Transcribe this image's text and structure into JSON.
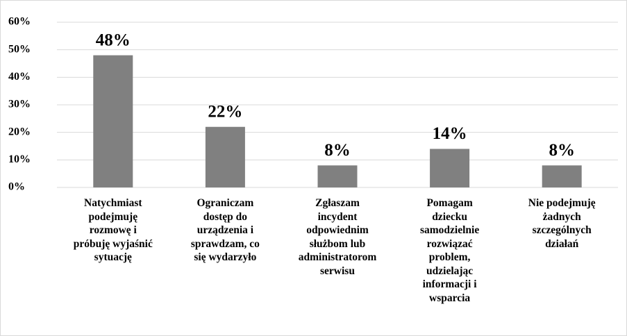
{
  "chart_data": {
    "type": "bar",
    "categories": [
      "Natychmiast\npodejmuję\nrozmowę i\npróbuję wyjaśnić\nsytuację",
      "Ograniczam\ndostęp do\nurządzenia i\nsprawdzam, co\nsię wydarzyło",
      "Zgłaszam\nincydent\nodpowiednim\nsłużbom lub\nadministratorom\nserwisu",
      "Pomagam\ndziecku\nsamodzielnie\nrozwiązać\nproblem,\nudzielając\ninformacji i\nwsparcia",
      "Nie podejmuję\nżadnych\nszczególnych\ndziałań"
    ],
    "values": [
      48,
      22,
      8,
      14,
      8
    ],
    "value_labels": [
      "48%",
      "22%",
      "8%",
      "14%",
      "8%"
    ],
    "color": "#808080",
    "ylim": [
      0,
      60
    ],
    "yticks": [
      {
        "value": 0,
        "label": "0%"
      },
      {
        "value": 10,
        "label": "10%"
      },
      {
        "value": 20,
        "label": "20%"
      },
      {
        "value": 30,
        "label": "30%"
      },
      {
        "value": 40,
        "label": "40%"
      },
      {
        "value": 50,
        "label": "50%"
      },
      {
        "value": 60,
        "label": "60%"
      }
    ],
    "grid": true
  }
}
